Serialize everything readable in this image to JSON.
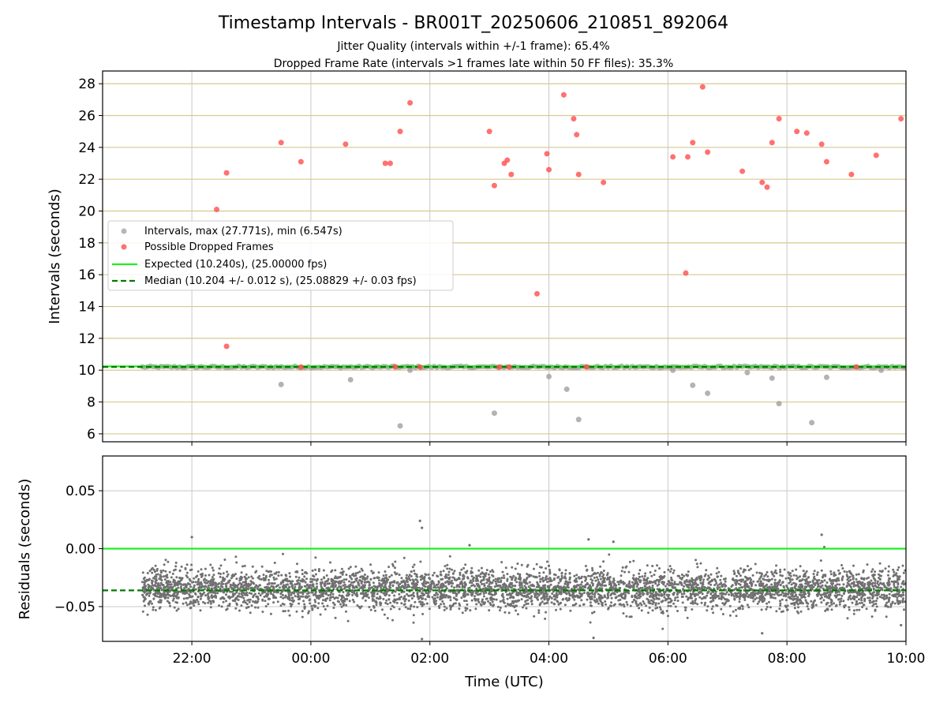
{
  "figure": {
    "title": "Timestamp Intervals - BR001T_20250606_210851_892064",
    "subtitle_line1": "Jitter Quality (intervals within +/-1 frame): 65.4%",
    "subtitle_line2": "Dropped Frame Rate (intervals >1 frames late within 50 FF files): 35.3%"
  },
  "colors": {
    "intervals": "#999999",
    "dropped": "#ff4d4d",
    "expected": "#22ee22",
    "median": "#007a00",
    "residual_points": "#707070",
    "grid_x": "#c8c8c8",
    "grid_y": "#d6c98f"
  },
  "chart_data": [
    {
      "type": "scatter",
      "ylabel": "Intervals (seconds)",
      "xlim": [
        "20:30",
        "10:00"
      ],
      "ylim": [
        5.5,
        28.8
      ],
      "yticks": [
        "6",
        "8",
        "10",
        "12",
        "14",
        "16",
        "18",
        "20",
        "22",
        "24",
        "26",
        "28"
      ],
      "grid": true,
      "legend_position": "center-left",
      "legend": [
        {
          "label": "Intervals, max (27.771s), min (6.547s)"
        },
        {
          "label": "Possible Dropped Frames"
        },
        {
          "label": "Expected (10.240s), (25.00000 fps)"
        },
        {
          "label": "Median (10.204 +/- 0.012 s), (25.08829 +/- 0.03 fps)"
        }
      ],
      "expected_line": 10.24,
      "median_line": 10.204,
      "interval_series": {
        "baseline": 10.2,
        "x_range": [
          "21:10",
          "10:00"
        ],
        "outliers": [
          [
            "23:30",
            9.1
          ],
          [
            "00:40",
            9.4
          ],
          [
            "01:30",
            6.5
          ],
          [
            "01:40",
            10.0
          ],
          [
            "03:05",
            7.3
          ],
          [
            "04:00",
            9.6
          ],
          [
            "04:18",
            8.8
          ],
          [
            "04:30",
            6.9
          ],
          [
            "06:05",
            10.0
          ],
          [
            "06:25",
            9.05
          ],
          [
            "06:40",
            8.55
          ],
          [
            "07:20",
            9.85
          ],
          [
            "07:45",
            9.5
          ],
          [
            "07:52",
            7.9
          ],
          [
            "08:25",
            6.7
          ],
          [
            "08:40",
            9.55
          ],
          [
            "09:35",
            10.0
          ]
        ]
      },
      "dropped_frames": [
        [
          "22:25",
          20.1
        ],
        [
          "22:35",
          22.4
        ],
        [
          "22:35",
          11.5
        ],
        [
          "23:30",
          24.3
        ],
        [
          "23:50",
          23.1
        ],
        [
          "23:50",
          10.2
        ],
        [
          "00:35",
          24.2
        ],
        [
          "01:15",
          23.0
        ],
        [
          "01:20",
          23.0
        ],
        [
          "01:25",
          10.2
        ],
        [
          "01:30",
          25.0
        ],
        [
          "01:40",
          26.8
        ],
        [
          "01:50",
          10.2
        ],
        [
          "03:00",
          25.0
        ],
        [
          "03:05",
          21.6
        ],
        [
          "03:10",
          10.2
        ],
        [
          "03:15",
          23.0
        ],
        [
          "03:18",
          23.2
        ],
        [
          "03:20",
          10.2
        ],
        [
          "03:22",
          22.3
        ],
        [
          "03:48",
          14.8
        ],
        [
          "03:58",
          23.6
        ],
        [
          "04:00",
          22.6
        ],
        [
          "04:15",
          27.3
        ],
        [
          "04:25",
          25.8
        ],
        [
          "04:28",
          24.8
        ],
        [
          "04:30",
          22.3
        ],
        [
          "04:38",
          10.2
        ],
        [
          "04:55",
          21.8
        ],
        [
          "06:05",
          23.4
        ],
        [
          "06:18",
          16.1
        ],
        [
          "06:20",
          23.4
        ],
        [
          "06:25",
          24.3
        ],
        [
          "06:35",
          27.8
        ],
        [
          "06:40",
          23.7
        ],
        [
          "07:15",
          22.5
        ],
        [
          "07:35",
          21.8
        ],
        [
          "07:40",
          21.5
        ],
        [
          "07:45",
          24.3
        ],
        [
          "07:52",
          25.8
        ],
        [
          "08:10",
          25.0
        ],
        [
          "08:20",
          24.9
        ],
        [
          "08:35",
          24.2
        ],
        [
          "08:40",
          23.1
        ],
        [
          "09:05",
          22.3
        ],
        [
          "09:10",
          10.2
        ],
        [
          "09:30",
          23.5
        ],
        [
          "09:55",
          25.8
        ]
      ]
    },
    {
      "type": "scatter",
      "ylabel": "Residuals (seconds)",
      "xlabel": "Time (UTC)",
      "xticks": [
        "22:00",
        "00:00",
        "02:00",
        "04:00",
        "06:00",
        "08:00",
        "10:00"
      ],
      "xlim": [
        "20:30",
        "10:00"
      ],
      "ylim": [
        -0.08,
        0.08
      ],
      "yticks": [
        "0.05",
        "0.00",
        "−0.05"
      ],
      "grid": true,
      "expected_line": 0.0,
      "median_line": -0.036,
      "residual_series": {
        "x_range": [
          "21:10",
          "10:00"
        ],
        "center": -0.035,
        "spread_sd": 0.0085,
        "point_count": 4700,
        "extremes": [
          [
            "22:00",
            0.01
          ],
          [
            "01:50",
            0.024
          ],
          [
            "01:52",
            0.018
          ],
          [
            "02:40",
            0.003
          ],
          [
            "04:40",
            0.008
          ],
          [
            "05:05",
            0.006
          ],
          [
            "08:35",
            0.012
          ],
          [
            "01:52",
            -0.078
          ],
          [
            "04:45",
            -0.077
          ],
          [
            "07:35",
            -0.073
          ],
          [
            "09:55",
            -0.066
          ]
        ]
      }
    }
  ]
}
